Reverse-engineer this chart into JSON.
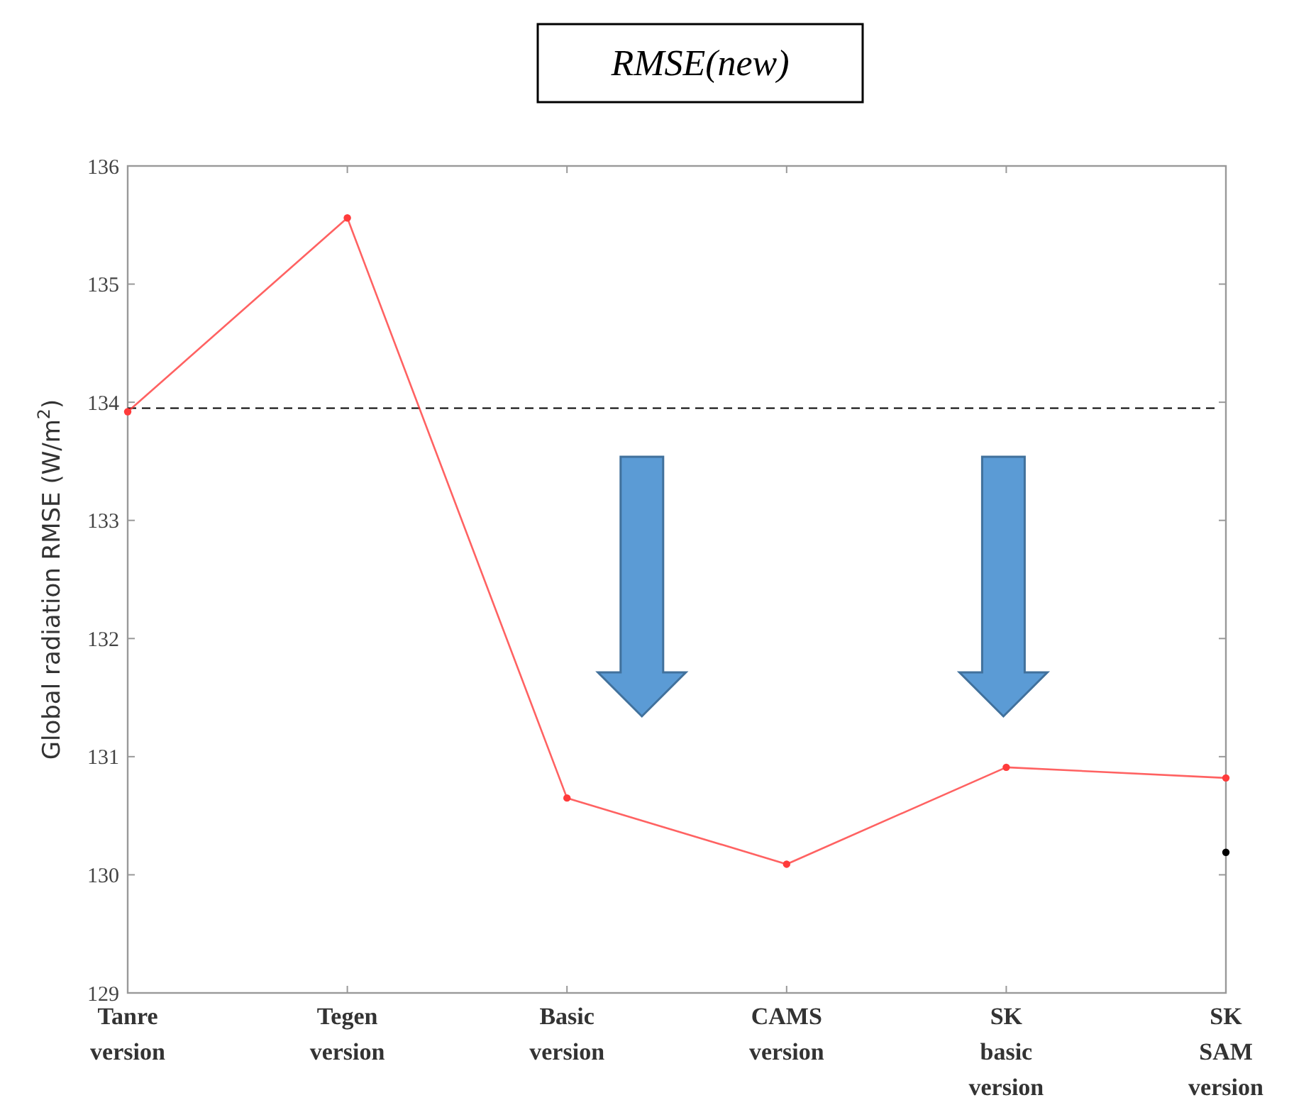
{
  "chart_data": {
    "type": "line",
    "title": "RMSE(new)",
    "ylabel": "Global radiation RMSE (W/m$^{2}$)",
    "categories": [
      "Tanre version",
      "Tegen version",
      "Basic version",
      "CAMS version",
      "SK basic version",
      "SK SAM version"
    ],
    "series": [
      {
        "color": "#ff3b3b",
        "values": [
          133.92,
          135.56,
          130.65,
          130.09,
          130.91,
          130.82
        ]
      },
      {
        "type": "scatter",
        "color": "#000000",
        "x": [
          "SK SAM version"
        ],
        "values": [
          130.19
        ]
      }
    ],
    "ylim": [
      129,
      136
    ],
    "yticks": [
      129,
      130,
      131,
      132,
      133,
      134,
      135,
      136
    ],
    "grid": false,
    "marker": "circle",
    "line_style": "solid",
    "ref_lines": [
      {
        "axis": "y",
        "value": 133.95,
        "line_style": "dashed",
        "color": "#000000"
      }
    ]
  }
}
